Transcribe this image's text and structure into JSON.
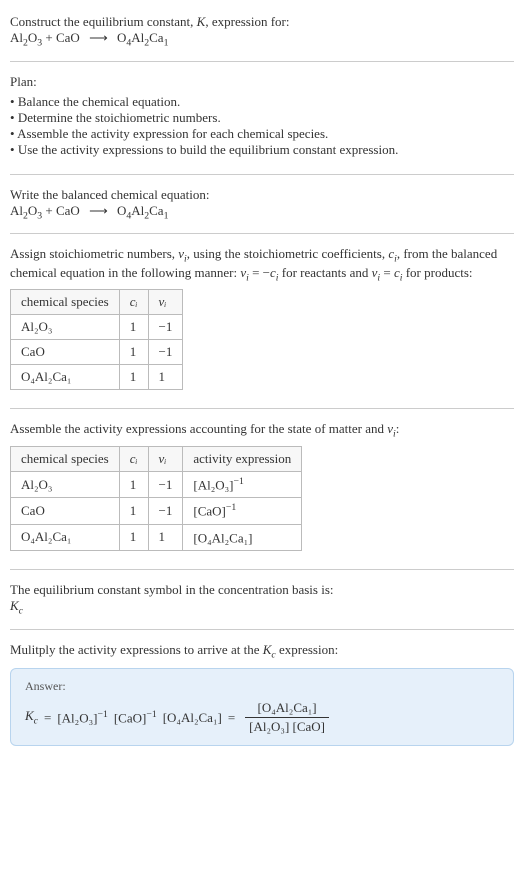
{
  "intro": {
    "line1": "Construct the equilibrium constant, ",
    "K": "K",
    "line1b": ", expression for:"
  },
  "reaction": {
    "reactant1": {
      "base": "Al",
      "sub1": "2",
      "mid": "O",
      "sub2": "3"
    },
    "plus": " + ",
    "reactant2": {
      "base": "CaO"
    },
    "arrow": "⟶",
    "product1": {
      "base": "O",
      "sub1": "4",
      "mid": "Al",
      "sub2": "2",
      "end": "Ca",
      "sub3": "1"
    }
  },
  "plan": {
    "title": "Plan:",
    "items": [
      "Balance the chemical equation.",
      "Determine the stoichiometric numbers.",
      "Assemble the activity expression for each chemical species.",
      "Use the activity expressions to build the equilibrium constant expression."
    ]
  },
  "balanced": {
    "title": "Write the balanced chemical equation:"
  },
  "assign": {
    "text_a": "Assign stoichiometric numbers, ",
    "nu": "ν",
    "i": "i",
    "text_b": ", using the stoichiometric coefficients, ",
    "c": "c",
    "text_c": ", from the balanced chemical equation in the following manner: ",
    "rel1a": "ν",
    "rel1b": " = −",
    "rel1c": "c",
    "text_d": " for reactants and ",
    "rel2a": "ν",
    "rel2b": " = ",
    "rel2c": "c",
    "text_e": " for products:"
  },
  "table1": {
    "headers": [
      "chemical species",
      "cᵢ",
      "νᵢ"
    ],
    "rows": [
      {
        "species": "Al₂O₃",
        "c": "1",
        "nu": "−1"
      },
      {
        "species": "CaO",
        "c": "1",
        "nu": "−1"
      },
      {
        "species": "O₄Al₂Ca₁",
        "c": "1",
        "nu": "1"
      }
    ]
  },
  "assemble": {
    "text_a": "Assemble the activity expressions accounting for the state of matter and ",
    "nu": "ν",
    "i": "i",
    "text_b": ":"
  },
  "table2": {
    "headers": [
      "chemical species",
      "cᵢ",
      "νᵢ",
      "activity expression"
    ],
    "rows": [
      {
        "species": "Al₂O₃",
        "c": "1",
        "nu": "−1",
        "act_base": "[Al₂O₃]",
        "act_exp": "−1"
      },
      {
        "species": "CaO",
        "c": "1",
        "nu": "−1",
        "act_base": "[CaO]",
        "act_exp": "−1"
      },
      {
        "species": "O₄Al₂Ca₁",
        "c": "1",
        "nu": "1",
        "act_base": "[O₄Al₂Ca₁]",
        "act_exp": ""
      }
    ]
  },
  "symbol": {
    "line": "The equilibrium constant symbol in the concentration basis is:",
    "Kc_K": "K",
    "Kc_c": "c"
  },
  "multiply": {
    "text_a": "Mulitply the activity expressions to arrive at the ",
    "K": "K",
    "c": "c",
    "text_b": " expression:"
  },
  "answer": {
    "label": "Answer:",
    "lhs_K": "K",
    "lhs_c": "c",
    "eq": " = ",
    "t1_base": "[Al₂O₃]",
    "t1_exp": "−1",
    "sp": " ",
    "t2_base": "[CaO]",
    "t2_exp": "−1",
    "t3": "[O₄Al₂Ca₁]",
    "eq2": " = ",
    "frac_num": "[O₄Al₂Ca₁]",
    "frac_den": "[Al₂O₃] [CaO]"
  },
  "colors": {
    "text": "#333333",
    "rule": "#cccccc",
    "table_border": "#bbbbbb",
    "table_header_bg": "#f7f7f7",
    "answer_bg": "#e6f0fa",
    "answer_border": "#b8d4ee"
  }
}
